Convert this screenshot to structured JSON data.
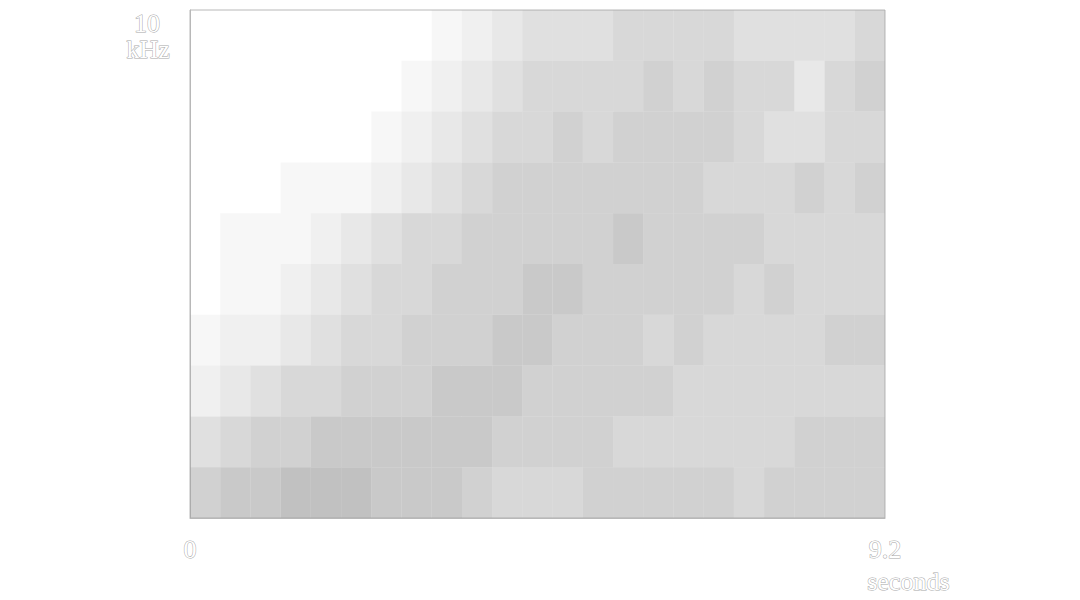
{
  "chart_data": {
    "type": "heatmap",
    "xlabel": "seconds",
    "ylabel": "kHz",
    "x": [
      0.2,
      0.6,
      1.0,
      1.4,
      1.8,
      2.2,
      2.6,
      3.0,
      3.4,
      3.8,
      4.2,
      4.6,
      5.0,
      5.4,
      5.8,
      6.2,
      6.6,
      7.0,
      7.4,
      7.8,
      8.2,
      8.6,
      9.0
    ],
    "y": [
      0.5,
      1.5,
      2.5,
      3.5,
      4.5,
      5.5,
      6.5,
      7.5,
      8.5,
      9.5
    ],
    "values": [
      [
        6,
        4,
        2,
        1,
        0,
        0,
        0,
        0,
        0,
        0
      ],
      [
        7,
        5,
        3,
        2,
        1,
        1,
        0,
        0,
        0,
        0
      ],
      [
        7,
        6,
        4,
        2,
        1,
        1,
        0,
        0,
        0,
        0
      ],
      [
        8,
        6,
        5,
        3,
        2,
        1,
        1,
        0,
        0,
        0
      ],
      [
        8,
        7,
        5,
        4,
        3,
        2,
        1,
        0,
        0,
        0
      ],
      [
        8,
        7,
        6,
        5,
        4,
        3,
        1,
        0,
        0,
        0
      ],
      [
        7,
        7,
        6,
        5,
        5,
        4,
        2,
        1,
        0,
        0
      ],
      [
        7,
        7,
        6,
        6,
        5,
        5,
        3,
        2,
        1,
        0
      ],
      [
        7,
        7,
        7,
        6,
        6,
        5,
        4,
        3,
        2,
        1
      ],
      [
        6,
        7,
        7,
        6,
        6,
        6,
        5,
        4,
        3,
        2
      ],
      [
        5,
        6,
        7,
        7,
        6,
        6,
        6,
        5,
        4,
        3
      ],
      [
        5,
        6,
        6,
        7,
        7,
        6,
        6,
        5,
        5,
        4
      ],
      [
        5,
        6,
        6,
        6,
        7,
        6,
        6,
        6,
        5,
        4
      ],
      [
        6,
        6,
        6,
        6,
        6,
        6,
        6,
        5,
        5,
        4
      ],
      [
        6,
        5,
        6,
        6,
        6,
        7,
        6,
        6,
        5,
        5
      ],
      [
        6,
        5,
        6,
        5,
        6,
        6,
        6,
        6,
        6,
        5
      ],
      [
        6,
        5,
        5,
        6,
        6,
        6,
        6,
        6,
        5,
        5
      ],
      [
        6,
        5,
        5,
        5,
        6,
        6,
        5,
        6,
        6,
        5
      ],
      [
        5,
        5,
        5,
        5,
        5,
        6,
        5,
        5,
        5,
        4
      ],
      [
        6,
        5,
        5,
        5,
        6,
        5,
        5,
        4,
        5,
        4
      ],
      [
        6,
        6,
        5,
        5,
        5,
        5,
        6,
        4,
        3,
        4
      ],
      [
        6,
        6,
        5,
        6,
        5,
        5,
        5,
        5,
        5,
        4
      ],
      [
        6,
        6,
        5,
        6,
        5,
        5,
        6,
        5,
        6,
        5
      ]
    ],
    "color": "#a0a0a0",
    "xlim": [
      0,
      9.2
    ],
    "ylim": [
      0,
      10
    ],
    "xticks": [
      0,
      9.2
    ],
    "yticks": [
      10
    ],
    "grid": false
  }
}
